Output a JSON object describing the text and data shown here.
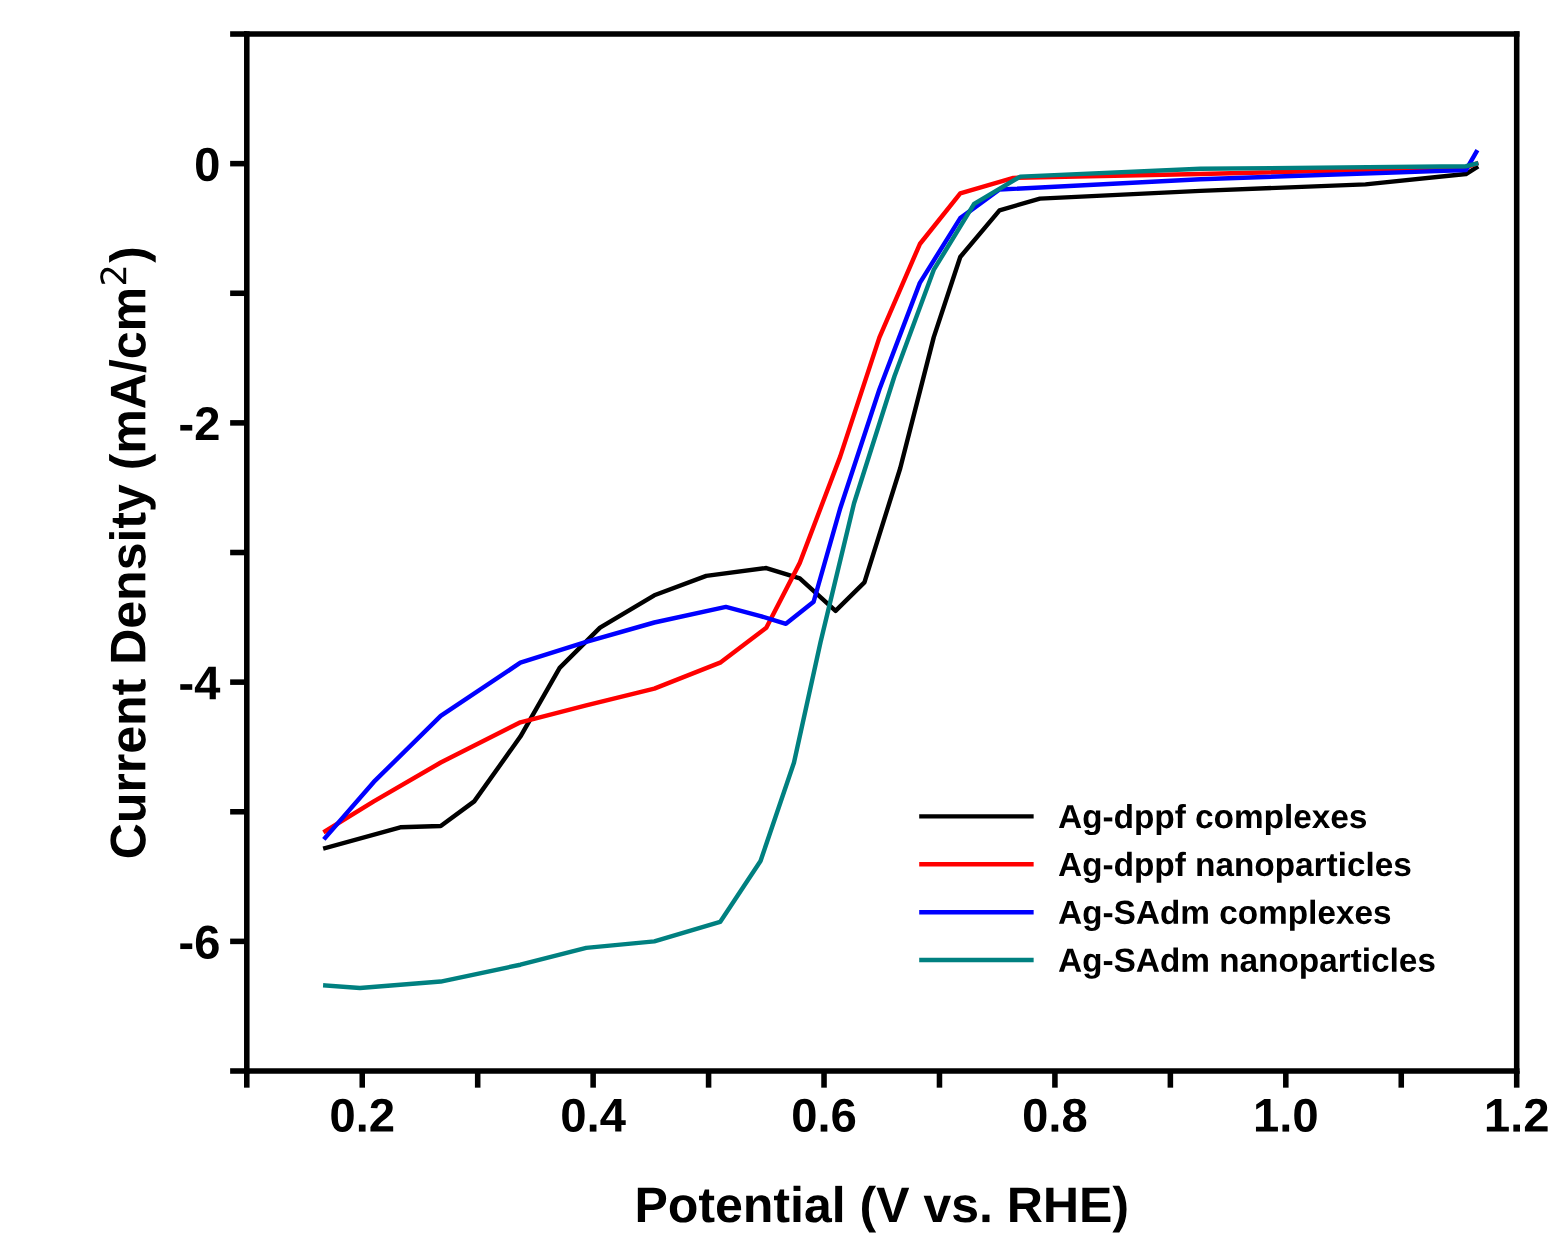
{
  "chart_data": {
    "type": "line",
    "xlabel": "Potential (V vs. RHE)",
    "ylabel": "Current Density (mA/cm$^{2}$)",
    "xlim": [
      0.1,
      1.2
    ],
    "ylim": [
      -7,
      1
    ],
    "xticks": [
      {
        "value": 0.1,
        "label": null
      },
      0.2,
      {
        "value": 0.3,
        "label": null
      },
      0.4,
      {
        "value": 0.5,
        "label": null
      },
      0.6,
      {
        "value": 0.7,
        "label": null
      },
      0.8,
      {
        "value": 0.9,
        "label": null
      },
      {
        "value": 1.0,
        "label": "1.0"
      },
      {
        "value": 1.1,
        "label": null
      },
      1.2
    ],
    "yticks": [
      {
        "value": -7,
        "label": null
      },
      -6,
      {
        "value": -5,
        "label": null
      },
      -4,
      {
        "value": -3,
        "label": null
      },
      -2,
      {
        "value": -1,
        "label": null
      },
      0,
      {
        "value": 1,
        "label": null
      }
    ],
    "legend": "bottom right",
    "grid": false,
    "marker": "none",
    "line_style": "solid",
    "series": [
      {
        "name": "Ag-dppf complexes",
        "color": "#000000",
        "x": [
          0.168,
          0.233,
          0.268,
          0.297,
          0.337,
          0.371,
          0.406,
          0.453,
          0.498,
          0.55,
          0.579,
          0.61,
          0.635,
          0.666,
          0.695,
          0.718,
          0.752,
          0.787,
          0.926,
          1.069,
          1.156,
          1.165
        ],
        "values": [
          -5.28,
          -5.12,
          -5.11,
          -4.92,
          -4.42,
          -3.89,
          -3.58,
          -3.33,
          -3.18,
          -3.12,
          -3.2,
          -3.45,
          -3.23,
          -2.35,
          -1.34,
          -0.72,
          -0.36,
          -0.27,
          -0.21,
          -0.16,
          -0.08,
          -0.03
        ]
      },
      {
        "name": "Ag-dppf nanoparticles",
        "color": "#ff0000",
        "x": [
          0.168,
          0.21,
          0.268,
          0.337,
          0.394,
          0.453,
          0.51,
          0.55,
          0.579,
          0.614,
          0.648,
          0.683,
          0.718,
          0.764,
          0.926,
          1.156,
          1.165
        ],
        "values": [
          -5.15,
          -4.92,
          -4.62,
          -4.31,
          -4.18,
          -4.05,
          -3.85,
          -3.58,
          -3.08,
          -2.26,
          -1.34,
          -0.62,
          -0.23,
          -0.11,
          -0.08,
          -0.03,
          0.0
        ]
      },
      {
        "name": "Ag-SAdm complexes",
        "color": "#0000ff",
        "x": [
          0.168,
          0.21,
          0.268,
          0.337,
          0.394,
          0.453,
          0.515,
          0.545,
          0.567,
          0.591,
          0.614,
          0.648,
          0.683,
          0.718,
          0.752,
          0.926,
          1.156,
          1.165
        ],
        "values": [
          -5.2,
          -4.77,
          -4.26,
          -3.85,
          -3.69,
          -3.54,
          -3.42,
          -3.49,
          -3.55,
          -3.38,
          -2.66,
          -1.74,
          -0.92,
          -0.42,
          -0.2,
          -0.12,
          -0.05,
          0.09
        ]
      },
      {
        "name": "Ag-SAdm nanoparticles",
        "color": "#008080",
        "x": [
          0.168,
          0.198,
          0.268,
          0.337,
          0.394,
          0.453,
          0.51,
          0.545,
          0.574,
          0.597,
          0.626,
          0.661,
          0.695,
          0.73,
          0.77,
          0.926,
          1.156,
          1.165
        ],
        "values": [
          -6.34,
          -6.36,
          -6.31,
          -6.18,
          -6.05,
          -6.0,
          -5.85,
          -5.38,
          -4.62,
          -3.69,
          -2.62,
          -1.64,
          -0.82,
          -0.31,
          -0.1,
          -0.04,
          -0.02,
          0.0
        ]
      }
    ]
  }
}
